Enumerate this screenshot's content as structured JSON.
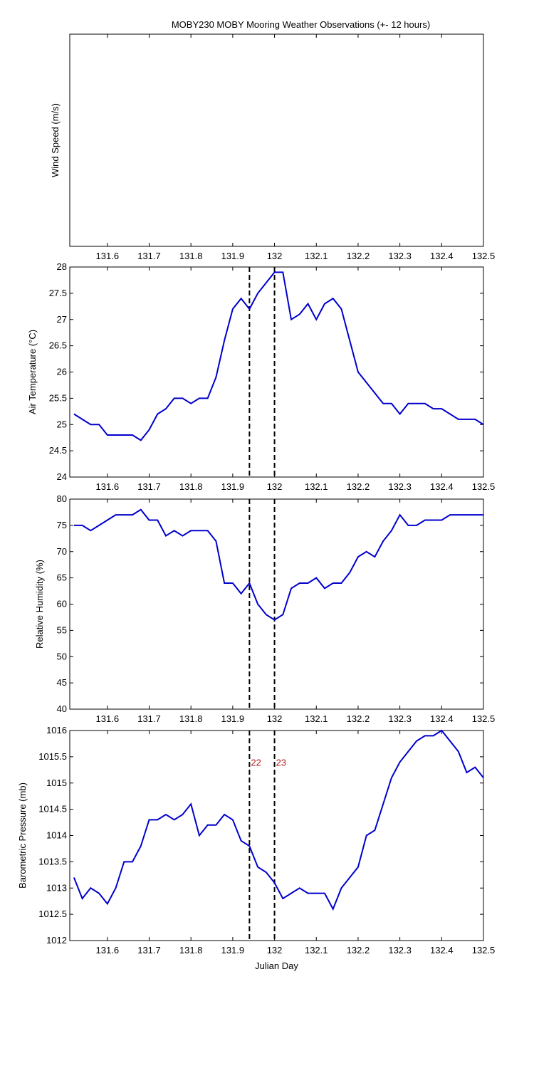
{
  "chart_data": [
    {
      "type": "line",
      "title": "MOBY230 MOBY Mooring Weather Observations (+- 12 hours)",
      "ylabel": "Wind Speed (m/s)",
      "xlim": [
        131.51,
        132.5
      ],
      "xticks": [
        131.6,
        131.7,
        131.8,
        131.9,
        132,
        132.1,
        132.2,
        132.3,
        132.4,
        132.5
      ],
      "x": [],
      "series": []
    },
    {
      "type": "line",
      "ylabel": "Air Temperature (°C)",
      "xlim": [
        131.51,
        132.5
      ],
      "xticks": [
        131.6,
        131.7,
        131.8,
        131.9,
        132,
        132.1,
        132.2,
        132.3,
        132.4,
        132.5
      ],
      "ylim": [
        24,
        28
      ],
      "yticks": [
        24,
        24.5,
        25,
        25.5,
        26,
        26.5,
        27,
        27.5,
        28
      ],
      "x": [
        131.52,
        131.54,
        131.56,
        131.58,
        131.6,
        131.62,
        131.64,
        131.66,
        131.68,
        131.7,
        131.72,
        131.74,
        131.76,
        131.78,
        131.8,
        131.82,
        131.84,
        131.86,
        131.88,
        131.9,
        131.92,
        131.94,
        131.96,
        131.98,
        132,
        132.02,
        132.04,
        132.06,
        132.08,
        132.1,
        132.12,
        132.14,
        132.16,
        132.18,
        132.2,
        132.22,
        132.24,
        132.26,
        132.28,
        132.3,
        132.32,
        132.34,
        132.36,
        132.38,
        132.4,
        132.42,
        132.44,
        132.46,
        132.48,
        132.5
      ],
      "series": [
        {
          "color": "#0000cc",
          "values": [
            25.2,
            25.1,
            25.0,
            25.0,
            24.8,
            24.8,
            24.8,
            24.8,
            24.7,
            24.9,
            25.2,
            25.3,
            25.5,
            25.5,
            25.4,
            25.5,
            25.5,
            25.9,
            26.6,
            27.2,
            27.4,
            27.2,
            27.5,
            27.7,
            27.9,
            27.9,
            27.0,
            27.1,
            27.3,
            27.0,
            27.3,
            27.4,
            27.2,
            26.6,
            26.0,
            25.8,
            25.6,
            25.4,
            25.4,
            25.2,
            25.4,
            25.4,
            25.4,
            25.3,
            25.3,
            25.2,
            25.1,
            25.1,
            25.1,
            25.0
          ]
        }
      ],
      "vlines": [
        131.94,
        132.0
      ],
      "vline_color": "#000000"
    },
    {
      "type": "line",
      "ylabel": "Relative Humidity (%)",
      "xlim": [
        131.51,
        132.5
      ],
      "xticks": [
        131.6,
        131.7,
        131.8,
        131.9,
        132,
        132.1,
        132.2,
        132.3,
        132.4,
        132.5
      ],
      "ylim": [
        40,
        80
      ],
      "yticks": [
        40,
        45,
        50,
        55,
        60,
        65,
        70,
        75,
        80
      ],
      "x": [
        131.52,
        131.54,
        131.56,
        131.58,
        131.6,
        131.62,
        131.64,
        131.66,
        131.68,
        131.7,
        131.72,
        131.74,
        131.76,
        131.78,
        131.8,
        131.82,
        131.84,
        131.86,
        131.88,
        131.9,
        131.92,
        131.94,
        131.96,
        131.98,
        132,
        132.02,
        132.04,
        132.06,
        132.08,
        132.1,
        132.12,
        132.14,
        132.16,
        132.18,
        132.2,
        132.22,
        132.24,
        132.26,
        132.28,
        132.3,
        132.32,
        132.34,
        132.36,
        132.38,
        132.4,
        132.42,
        132.44,
        132.46,
        132.48,
        132.5
      ],
      "series": [
        {
          "color": "#0000cc",
          "values": [
            75,
            75,
            74,
            75,
            76,
            77,
            77,
            77,
            78,
            76,
            76,
            73,
            74,
            73,
            74,
            74,
            74,
            72,
            64,
            64,
            62,
            64,
            60,
            58,
            57,
            58,
            63,
            64,
            64,
            65,
            63,
            64,
            64,
            66,
            69,
            70,
            69,
            72,
            74,
            77,
            75,
            75,
            76,
            76,
            76,
            77,
            77,
            77,
            77,
            77
          ]
        }
      ],
      "vlines": [
        131.94,
        132.0
      ],
      "vline_color": "#000000"
    },
    {
      "type": "line",
      "ylabel": "Barometric Pressure (mb)",
      "xlabel": "Julian Day",
      "xlim": [
        131.51,
        132.5
      ],
      "xticks": [
        131.6,
        131.7,
        131.8,
        131.9,
        132,
        132.1,
        132.2,
        132.3,
        132.4,
        132.5
      ],
      "ylim": [
        1012,
        1016
      ],
      "yticks": [
        1012,
        1012.5,
        1013,
        1013.5,
        1014,
        1014.5,
        1015,
        1015.5,
        1016
      ],
      "x": [
        131.52,
        131.54,
        131.56,
        131.58,
        131.6,
        131.62,
        131.64,
        131.66,
        131.68,
        131.7,
        131.72,
        131.74,
        131.76,
        131.78,
        131.8,
        131.82,
        131.84,
        131.86,
        131.88,
        131.9,
        131.92,
        131.94,
        131.96,
        131.98,
        132,
        132.02,
        132.04,
        132.06,
        132.08,
        132.1,
        132.12,
        132.14,
        132.16,
        132.18,
        132.2,
        132.22,
        132.24,
        132.26,
        132.28,
        132.3,
        132.32,
        132.34,
        132.36,
        132.38,
        132.4,
        132.42,
        132.44,
        132.46,
        132.48,
        132.5
      ],
      "series": [
        {
          "color": "#0000cc",
          "values": [
            1013.2,
            1012.8,
            1013,
            1012.9,
            1012.7,
            1013,
            1013.5,
            1013.5,
            1013.8,
            1014.3,
            1014.3,
            1014.4,
            1014.3,
            1014.4,
            1014.6,
            1014,
            1014.2,
            1014.2,
            1014.4,
            1014.3,
            1013.9,
            1013.8,
            1013.4,
            1013.3,
            1013.1,
            1012.8,
            1012.9,
            1013,
            1012.9,
            1012.9,
            1012.9,
            1012.6,
            1013,
            1013.2,
            1013.4,
            1014,
            1014.1,
            1014.6,
            1015.1,
            1015.4,
            1015.6,
            1015.8,
            1015.9,
            1015.9,
            1016,
            1015.8,
            1015.6,
            1015.2,
            1015.3,
            1015.1
          ]
        }
      ],
      "vlines": [
        131.94,
        132.0
      ],
      "vline_color": "#000000",
      "annotations": [
        {
          "text": "22",
          "x": 131.94,
          "y": 1015.4,
          "color": "#b22222"
        },
        {
          "text": "23",
          "x": 132.0,
          "y": 1015.4,
          "color": "#b22222"
        }
      ]
    }
  ]
}
